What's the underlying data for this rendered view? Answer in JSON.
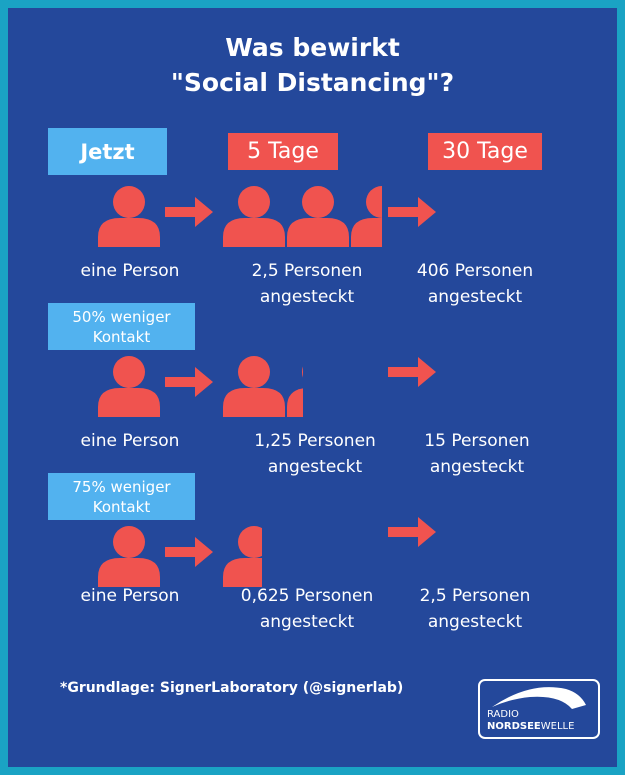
{
  "title_line1": "Was bewirkt",
  "title_line2": "\"Social Distancing\"?",
  "headers": {
    "now": "Jetzt",
    "day5": "5 Tage",
    "day30": "30 Tage"
  },
  "rows": [
    {
      "label": "",
      "start": "eine Person",
      "day5_line1": "2,5 Personen",
      "day5_line2": "angesteckt",
      "day30_line1": "406 Personen",
      "day30_line2": "angesteckt",
      "persons_day5": 2.5
    },
    {
      "label_line1": "50% weniger",
      "label_line2": "Kontakt",
      "start": "eine Person",
      "day5_line1": "1,25 Personen",
      "day5_line2": "angesteckt",
      "day30_line1": "15 Personen",
      "day30_line2": "angesteckt",
      "persons_day5": 1.25
    },
    {
      "label_line1": "75% weniger",
      "label_line2": "Kontakt",
      "start": "eine Person",
      "day5_line1": "0,625 Personen",
      "day5_line2": "angesteckt",
      "day30_line1": "2,5 Personen",
      "day30_line2": "angesteckt",
      "persons_day5": 0.625
    }
  ],
  "footnote": "*Grundlage: SignerLaboratory (@signerlab)",
  "logo": {
    "line1": "RADIO",
    "line2_bold": "NORDSEE",
    "line2_regular": "WELLE"
  },
  "colors": {
    "border": "#1aa3c4",
    "background": "#24489b",
    "red": "#f0534f",
    "blue": "#52b2ef"
  }
}
